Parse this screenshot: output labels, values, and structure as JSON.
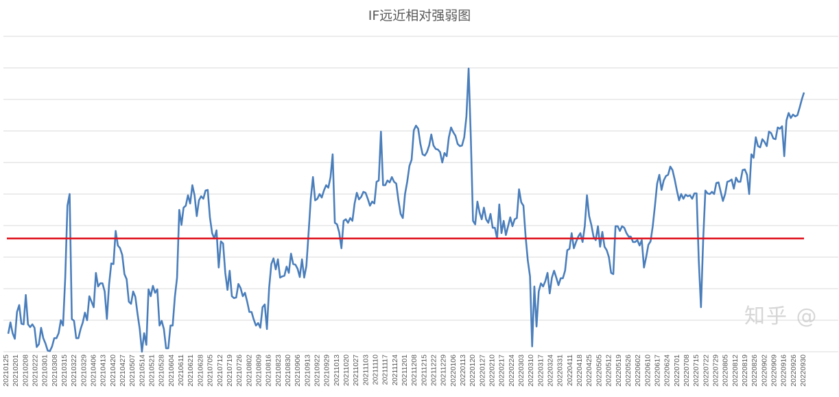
{
  "chart_data": {
    "type": "line",
    "title": "IF远近相对强弱图",
    "xlabel": "",
    "ylabel": "",
    "ylim": [
      0,
      10
    ],
    "y_tick_labels_shown": false,
    "grid": true,
    "legend": "none",
    "x_tick_labels": [
      "20210125",
      "20210201",
      "20210208",
      "20210222",
      "20210301",
      "20210308",
      "20210315",
      "20210322",
      "20210329",
      "20210406",
      "20210413",
      "20210420",
      "20210427",
      "20210507",
      "20210514",
      "20210521",
      "20210528",
      "20210604",
      "20210611",
      "20210621",
      "20210628",
      "20210705",
      "20210712",
      "20210719",
      "20210726",
      "20210802",
      "20210809",
      "20210816",
      "20210823",
      "20210830",
      "20210906",
      "20210913",
      "20210922",
      "20210929",
      "20211013",
      "20211020",
      "20211027",
      "20211103",
      "20211110",
      "20211117",
      "20211124",
      "20211201",
      "20211208",
      "20211215",
      "20211222",
      "20211229",
      "20220106",
      "20220113",
      "20220120",
      "20220127",
      "20220210",
      "20220217",
      "20220224",
      "20220303",
      "20220310",
      "20220317",
      "20220324",
      "20220331",
      "20220411",
      "20220418",
      "20220425",
      "20220505",
      "20220512",
      "20220519",
      "20220526",
      "20220602",
      "20220610",
      "20220617",
      "20220624",
      "20220701",
      "20220708",
      "20220715",
      "20220722",
      "20220729",
      "20220805",
      "20220812",
      "20220819",
      "20220826",
      "20220902",
      "20220909",
      "20220916",
      "20220926",
      "20220930"
    ],
    "series": [
      {
        "color": "#4a7ebb",
        "values": [
          0.57,
          0.93,
          0.59,
          0.41,
          1.26,
          1.48,
          0.89,
          0.87,
          1.8,
          0.87,
          0.78,
          0.87,
          0.76,
          0.15,
          0.24,
          0.76,
          0.43,
          0.26,
          0.04,
          0.02,
          0.17,
          0.43,
          0.43,
          0.59,
          1.0,
          0.83,
          2.35,
          4.63,
          5.0,
          1.04,
          0.98,
          0.43,
          0.43,
          0.72,
          0.93,
          1.24,
          1.0,
          1.76,
          1.59,
          1.41,
          2.5,
          2.07,
          2.17,
          2.17,
          1.91,
          1.04,
          2.13,
          2.8,
          2.78,
          3.83,
          3.37,
          3.28,
          3.07,
          2.46,
          2.3,
          1.59,
          1.52,
          1.91,
          1.74,
          1.2,
          0.72,
          0.0,
          0.59,
          0.22,
          1.98,
          1.76,
          2.09,
          1.87,
          1.98,
          0.83,
          0.98,
          0.72,
          0.11,
          0.11,
          0.83,
          0.83,
          1.74,
          2.35,
          4.5,
          4.02,
          4.57,
          4.63,
          4.96,
          4.7,
          5.28,
          4.96,
          4.3,
          4.8,
          4.93,
          4.85,
          5.11,
          5.13,
          4.26,
          3.76,
          3.59,
          3.85,
          2.67,
          3.5,
          3.43,
          2.5,
          1.96,
          2.57,
          1.76,
          1.7,
          1.72,
          2.15,
          2.02,
          1.76,
          1.87,
          1.59,
          1.26,
          1.26,
          1.02,
          0.83,
          0.91,
          0.76,
          1.41,
          1.5,
          0.72,
          2.02,
          2.78,
          2.96,
          2.61,
          2.93,
          2.35,
          2.39,
          2.41,
          2.7,
          2.5,
          3.11,
          2.78,
          2.76,
          2.63,
          2.37,
          2.93,
          2.35,
          2.72,
          3.76,
          4.85,
          5.54,
          4.8,
          4.85,
          5.0,
          4.89,
          5.11,
          5.28,
          5.2,
          5.54,
          6.26,
          4.09,
          4.04,
          3.78,
          3.28,
          4.15,
          4.2,
          4.09,
          4.24,
          4.15,
          4.7,
          5.04,
          4.83,
          4.91,
          5.07,
          5.04,
          4.85,
          4.63,
          4.76,
          4.7,
          5.39,
          5.43,
          6.98,
          5.28,
          5.28,
          5.43,
          5.37,
          5.54,
          5.39,
          5.33,
          4.8,
          4.37,
          4.24,
          5.0,
          5.39,
          5.89,
          6.09,
          7.02,
          7.17,
          7.07,
          6.59,
          6.26,
          6.22,
          6.33,
          6.54,
          6.89,
          6.54,
          6.43,
          6.41,
          6.33,
          6.0,
          6.3,
          6.2,
          6.8,
          7.11,
          6.96,
          6.85,
          6.59,
          6.52,
          6.54,
          6.8,
          7.46,
          8.98,
          6.8,
          4.15,
          4.04,
          4.76,
          4.41,
          4.2,
          4.57,
          4.2,
          4.09,
          4.37,
          3.93,
          3.93,
          3.59,
          4.67,
          3.76,
          4.15,
          3.7,
          3.98,
          4.26,
          3.98,
          4.2,
          4.24,
          5.15,
          4.74,
          4.63,
          3.65,
          2.89,
          2.39,
          0.17,
          2.07,
          0.8,
          1.91,
          2.17,
          2.07,
          2.24,
          2.5,
          1.85,
          2.35,
          2.57,
          2.35,
          2.11,
          2.33,
          2.33,
          2.57,
          3.22,
          3.26,
          3.76,
          3.28,
          3.48,
          3.65,
          3.76,
          3.48,
          3.98,
          4.96,
          4.3,
          4.02,
          3.65,
          3.54,
          3.98,
          3.33,
          3.8,
          3.33,
          3.22,
          3.0,
          2.5,
          2.46,
          3.98,
          3.98,
          3.83,
          3.98,
          3.93,
          3.76,
          3.65,
          3.65,
          3.48,
          3.48,
          3.54,
          3.37,
          3.54,
          2.67,
          3.0,
          3.39,
          3.5,
          3.98,
          4.63,
          5.33,
          5.61,
          5.13,
          5.43,
          5.57,
          5.61,
          5.87,
          5.76,
          5.46,
          5.11,
          4.8,
          5.0,
          4.85,
          4.98,
          4.93,
          4.96,
          4.85,
          5.02,
          5.02,
          2.89,
          1.41,
          3.54,
          5.11,
          5.02,
          5.0,
          5.07,
          5.0,
          5.35,
          5.37,
          5.07,
          4.78,
          5.0,
          5.39,
          5.41,
          5.46,
          5.17,
          5.52,
          5.39,
          5.39,
          5.76,
          5.78,
          5.61,
          5.0,
          6.26,
          6.15,
          6.8,
          6.52,
          6.48,
          6.74,
          6.65,
          6.52,
          6.98,
          6.93,
          6.76,
          6.74,
          7.11,
          7.07,
          7.15,
          6.2,
          7.33,
          7.57,
          7.41,
          7.52,
          7.46,
          7.5,
          7.74,
          8.0,
          8.22
        ]
      },
      {
        "color": "#e0141e",
        "type": "horizontal-reference",
        "value": 3.59
      }
    ]
  },
  "watermark": "知乎 @"
}
